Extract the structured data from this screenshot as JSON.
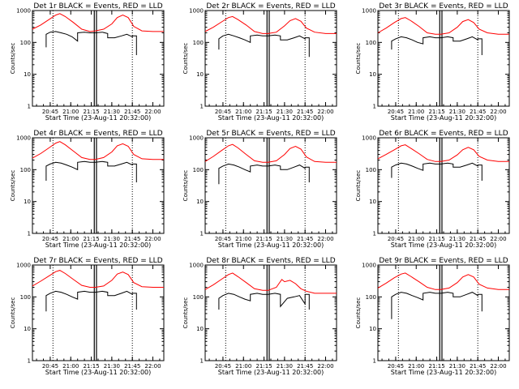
{
  "figure": {
    "ylabel": "Counts/sec",
    "xlabel": "Start Time (23-Aug-11 20:32:00)",
    "x_tick_labels": [
      "20:45",
      "21:00",
      "21:15",
      "21:30",
      "21:45",
      "22:00"
    ],
    "y_tick_labels": [
      "1",
      "10",
      "100",
      "1000"
    ],
    "colors": {
      "events": "#000000",
      "lld": "#ff0000",
      "background": "#ffffff"
    }
  },
  "chart_data": [
    {
      "type": "line",
      "title": "Det 1r BLACK = Events, RED = LLD",
      "xlabel": "Start Time (23-Aug-11 20:32:00)",
      "ylabel": "Counts/sec",
      "x_unit": "minutes after 20:32:00",
      "xlim": [
        0,
        96
      ],
      "ylim": [
        1,
        1000
      ],
      "y_scale": "log",
      "markers": {
        "dotted": [
          15,
          73
        ],
        "solid": [
          45.2,
          46.8
        ]
      },
      "series": [
        {
          "name": "LLD",
          "color": "#ff0000",
          "x": [
            0,
            6,
            12,
            17,
            20,
            24,
            30,
            36,
            42,
            46,
            52,
            58,
            62,
            66,
            70,
            74,
            80,
            88,
            96
          ],
          "y": [
            260,
            350,
            520,
            720,
            800,
            650,
            420,
            260,
            220,
            230,
            260,
            380,
            600,
            720,
            600,
            320,
            230,
            220,
            220
          ]
        },
        {
          "name": "Events",
          "color": "#000000",
          "x": [
            10,
            10,
            13,
            17,
            21,
            25,
            29,
            33,
            33,
            38,
            42,
            46,
            51,
            55,
            55,
            60,
            65,
            69,
            73,
            73,
            76,
            76
          ],
          "y": [
            70,
            180,
            210,
            220,
            200,
            180,
            150,
            110,
            200,
            210,
            200,
            200,
            210,
            190,
            140,
            140,
            160,
            180,
            150,
            160,
            160,
            40
          ]
        }
      ]
    },
    {
      "type": "line",
      "title": "Det 2r BLACK = Events, RED = LLD",
      "xlabel": "Start Time (23-Aug-11 20:32:00)",
      "ylabel": "Counts/sec",
      "x_unit": "minutes after 20:32:00",
      "xlim": [
        0,
        96
      ],
      "ylim": [
        1,
        1000
      ],
      "y_scale": "log",
      "markers": {
        "dotted": [
          15,
          73
        ],
        "solid": [
          45.2,
          46.8
        ]
      },
      "series": [
        {
          "name": "LLD",
          "color": "#ff0000",
          "x": [
            0,
            6,
            12,
            17,
            20,
            24,
            30,
            36,
            42,
            46,
            52,
            58,
            62,
            66,
            70,
            74,
            80,
            88,
            96
          ],
          "y": [
            220,
            300,
            440,
            600,
            650,
            520,
            350,
            220,
            190,
            190,
            210,
            330,
            480,
            560,
            460,
            280,
            210,
            190,
            190
          ]
        },
        {
          "name": "Events",
          "color": "#000000",
          "x": [
            10,
            10,
            13,
            17,
            21,
            25,
            29,
            33,
            33,
            38,
            42,
            46,
            51,
            55,
            55,
            60,
            65,
            69,
            73,
            73,
            76,
            76
          ],
          "y": [
            60,
            130,
            160,
            180,
            160,
            140,
            120,
            100,
            160,
            170,
            160,
            160,
            170,
            160,
            120,
            120,
            140,
            160,
            130,
            140,
            140,
            35
          ]
        }
      ]
    },
    {
      "type": "line",
      "title": "Det 3r BLACK = Events, RED = LLD",
      "xlabel": "Start Time (23-Aug-11 20:32:00)",
      "ylabel": "Counts/sec",
      "x_unit": "minutes after 20:32:00",
      "xlim": [
        0,
        96
      ],
      "ylim": [
        1,
        1000
      ],
      "y_scale": "log",
      "markers": {
        "dotted": [
          15,
          73
        ],
        "solid": [
          45.2,
          46.8
        ]
      },
      "series": [
        {
          "name": "LLD",
          "color": "#ff0000",
          "x": [
            0,
            6,
            12,
            17,
            20,
            24,
            30,
            36,
            42,
            46,
            52,
            58,
            62,
            66,
            70,
            74,
            80,
            88,
            96
          ],
          "y": [
            200,
            280,
            420,
            560,
            600,
            480,
            320,
            200,
            180,
            180,
            200,
            300,
            450,
            520,
            420,
            260,
            200,
            180,
            180
          ]
        },
        {
          "name": "Events",
          "color": "#000000",
          "x": [
            10,
            10,
            13,
            17,
            21,
            25,
            29,
            33,
            33,
            38,
            42,
            46,
            51,
            55,
            55,
            60,
            65,
            69,
            73,
            73,
            76,
            76
          ],
          "y": [
            60,
            110,
            130,
            150,
            140,
            120,
            100,
            90,
            140,
            150,
            140,
            140,
            150,
            140,
            110,
            110,
            130,
            150,
            120,
            130,
            130,
            40
          ]
        }
      ]
    },
    {
      "type": "line",
      "title": "Det 4r BLACK = Events, RED = LLD",
      "xlabel": "Start Time (23-Aug-11 20:32:00)",
      "ylabel": "Counts/sec",
      "x_unit": "minutes after 20:32:00",
      "xlim": [
        0,
        96
      ],
      "ylim": [
        1,
        1000
      ],
      "y_scale": "log",
      "markers": {
        "dotted": [
          15,
          73
        ],
        "solid": [
          45.2,
          46.8
        ]
      },
      "series": [
        {
          "name": "LLD",
          "color": "#ff0000",
          "x": [
            0,
            6,
            12,
            17,
            20,
            24,
            30,
            36,
            42,
            46,
            52,
            58,
            62,
            66,
            70,
            74,
            80,
            88,
            96
          ],
          "y": [
            230,
            320,
            480,
            680,
            760,
            600,
            380,
            240,
            210,
            210,
            240,
            360,
            560,
            650,
            540,
            300,
            220,
            210,
            210
          ]
        },
        {
          "name": "Events",
          "color": "#000000",
          "x": [
            10,
            10,
            13,
            17,
            21,
            25,
            29,
            33,
            33,
            38,
            42,
            46,
            51,
            55,
            55,
            60,
            65,
            69,
            73,
            73,
            76,
            76
          ],
          "y": [
            45,
            130,
            150,
            170,
            160,
            140,
            120,
            100,
            170,
            180,
            170,
            170,
            180,
            170,
            130,
            130,
            150,
            170,
            140,
            150,
            150,
            40
          ]
        }
      ]
    },
    {
      "type": "line",
      "title": "Det 5r BLACK = Events, RED = LLD",
      "xlabel": "Start Time (23-Aug-11 20:32:00)",
      "ylabel": "Counts/sec",
      "x_unit": "minutes after 20:32:00",
      "xlim": [
        0,
        96
      ],
      "ylim": [
        1,
        1000
      ],
      "y_scale": "log",
      "markers": {
        "dotted": [
          15,
          73
        ],
        "solid": [
          45.2,
          46.8
        ]
      },
      "series": [
        {
          "name": "LLD",
          "color": "#ff0000",
          "x": [
            0,
            6,
            12,
            17,
            20,
            24,
            30,
            36,
            42,
            46,
            52,
            58,
            62,
            66,
            70,
            74,
            80,
            88,
            96
          ],
          "y": [
            180,
            260,
            400,
            560,
            620,
            480,
            300,
            190,
            170,
            170,
            190,
            300,
            460,
            540,
            440,
            250,
            180,
            170,
            170
          ]
        },
        {
          "name": "Events",
          "color": "#000000",
          "x": [
            10,
            10,
            13,
            17,
            21,
            25,
            29,
            33,
            33,
            38,
            42,
            46,
            51,
            55,
            55,
            60,
            65,
            69,
            73,
            73,
            76,
            76
          ],
          "y": [
            35,
            110,
            130,
            150,
            140,
            120,
            100,
            85,
            130,
            140,
            130,
            130,
            140,
            130,
            100,
            100,
            120,
            140,
            110,
            120,
            120,
            40
          ]
        }
      ]
    },
    {
      "type": "line",
      "title": "Det 6r BLACK = Events, RED = LLD",
      "xlabel": "Start Time (23-Aug-11 20:32:00)",
      "ylabel": "Counts/sec",
      "x_unit": "minutes after 20:32:00",
      "xlim": [
        0,
        96
      ],
      "ylim": [
        1,
        1000
      ],
      "y_scale": "log",
      "markers": {
        "dotted": [
          15,
          73
        ],
        "solid": [
          45.2,
          46.8
        ]
      },
      "series": [
        {
          "name": "LLD",
          "color": "#ff0000",
          "x": [
            0,
            6,
            12,
            17,
            20,
            24,
            30,
            36,
            42,
            46,
            52,
            58,
            62,
            66,
            70,
            74,
            80,
            88,
            96
          ],
          "y": [
            220,
            300,
            420,
            560,
            600,
            470,
            320,
            210,
            180,
            180,
            200,
            290,
            420,
            500,
            420,
            260,
            200,
            180,
            180
          ]
        },
        {
          "name": "Events",
          "color": "#000000",
          "x": [
            10,
            10,
            13,
            17,
            21,
            25,
            29,
            33,
            33,
            38,
            42,
            46,
            51,
            55,
            55,
            60,
            65,
            69,
            73,
            73,
            76,
            76
          ],
          "y": [
            55,
            120,
            140,
            160,
            150,
            130,
            110,
            95,
            150,
            160,
            150,
            150,
            160,
            150,
            120,
            120,
            140,
            160,
            130,
            140,
            140,
            45
          ]
        }
      ]
    },
    {
      "type": "line",
      "title": "Det 7r BLACK = Events, RED = LLD",
      "xlabel": "Start Time (23-Aug-11 20:32:00)",
      "ylabel": "Counts/sec",
      "x_unit": "minutes after 20:32:00",
      "xlim": [
        0,
        96
      ],
      "ylim": [
        1,
        1000
      ],
      "y_scale": "log",
      "markers": {
        "dotted": [
          15,
          73
        ],
        "solid": [
          45.2,
          46.8
        ]
      },
      "series": [
        {
          "name": "LLD",
          "color": "#ff0000",
          "x": [
            0,
            6,
            12,
            17,
            20,
            24,
            30,
            36,
            42,
            46,
            52,
            58,
            62,
            66,
            70,
            74,
            80,
            88,
            96
          ],
          "y": [
            220,
            310,
            450,
            620,
            680,
            540,
            350,
            230,
            200,
            200,
            220,
            330,
            520,
            600,
            500,
            280,
            210,
            200,
            200
          ]
        },
        {
          "name": "Events",
          "color": "#000000",
          "x": [
            10,
            10,
            13,
            17,
            21,
            25,
            29,
            33,
            33,
            38,
            42,
            46,
            51,
            55,
            55,
            60,
            65,
            69,
            73,
            73,
            76,
            76
          ],
          "y": [
            35,
            110,
            130,
            150,
            140,
            120,
            100,
            85,
            140,
            150,
            140,
            140,
            150,
            140,
            110,
            110,
            130,
            150,
            120,
            130,
            130,
            40
          ]
        }
      ]
    },
    {
      "type": "line",
      "title": "Det 8r BLACK = Events, RED = LLD",
      "xlabel": "Start Time (23-Aug-11 20:32:00)",
      "ylabel": "Counts/sec",
      "x_unit": "minutes after 20:32:00",
      "xlim": [
        0,
        96
      ],
      "ylim": [
        1,
        1000
      ],
      "y_scale": "log",
      "markers": {
        "dotted": [
          15,
          73
        ],
        "solid": [
          45.2,
          46.8
        ]
      },
      "series": [
        {
          "name": "LLD",
          "color": "#ff0000",
          "x": [
            0,
            6,
            12,
            17,
            20,
            24,
            30,
            36,
            42,
            46,
            52,
            56,
            58,
            62,
            66,
            70,
            74,
            80,
            88,
            96
          ],
          "y": [
            170,
            240,
            360,
            500,
            560,
            430,
            280,
            180,
            160,
            160,
            200,
            350,
            300,
            330,
            260,
            180,
            150,
            130,
            130,
            130
          ]
        },
        {
          "name": "Events",
          "color": "#000000",
          "x": [
            10,
            10,
            13,
            17,
            21,
            25,
            29,
            33,
            33,
            38,
            42,
            46,
            51,
            55,
            55,
            60,
            65,
            69,
            73,
            73,
            76,
            76
          ],
          "y": [
            40,
            90,
            110,
            130,
            120,
            100,
            85,
            75,
            120,
            130,
            120,
            120,
            130,
            120,
            50,
            90,
            100,
            110,
            60,
            120,
            120,
            40
          ]
        }
      ]
    },
    {
      "type": "line",
      "title": "Det 9r BLACK = Events, RED = LLD",
      "xlabel": "Start Time (23-Aug-11 20:32:00)",
      "ylabel": "Counts/sec",
      "x_unit": "minutes after 20:32:00",
      "xlim": [
        0,
        96
      ],
      "ylim": [
        1,
        1000
      ],
      "y_scale": "log",
      "markers": {
        "dotted": [
          15,
          73
        ],
        "solid": [
          45.2,
          46.8
        ]
      },
      "series": [
        {
          "name": "LLD",
          "color": "#ff0000",
          "x": [
            0,
            6,
            12,
            17,
            20,
            24,
            30,
            36,
            42,
            46,
            52,
            58,
            62,
            66,
            70,
            74,
            80,
            88,
            96
          ],
          "y": [
            190,
            270,
            400,
            520,
            560,
            440,
            300,
            200,
            170,
            170,
            190,
            280,
            420,
            500,
            420,
            250,
            190,
            170,
            170
          ]
        },
        {
          "name": "Events",
          "color": "#000000",
          "x": [
            10,
            10,
            13,
            17,
            21,
            25,
            29,
            33,
            33,
            38,
            42,
            46,
            51,
            55,
            55,
            60,
            65,
            69,
            73,
            73,
            76,
            76
          ],
          "y": [
            20,
            100,
            120,
            140,
            130,
            110,
            95,
            80,
            130,
            140,
            130,
            130,
            140,
            130,
            100,
            100,
            120,
            140,
            110,
            120,
            120,
            35
          ]
        }
      ]
    }
  ]
}
